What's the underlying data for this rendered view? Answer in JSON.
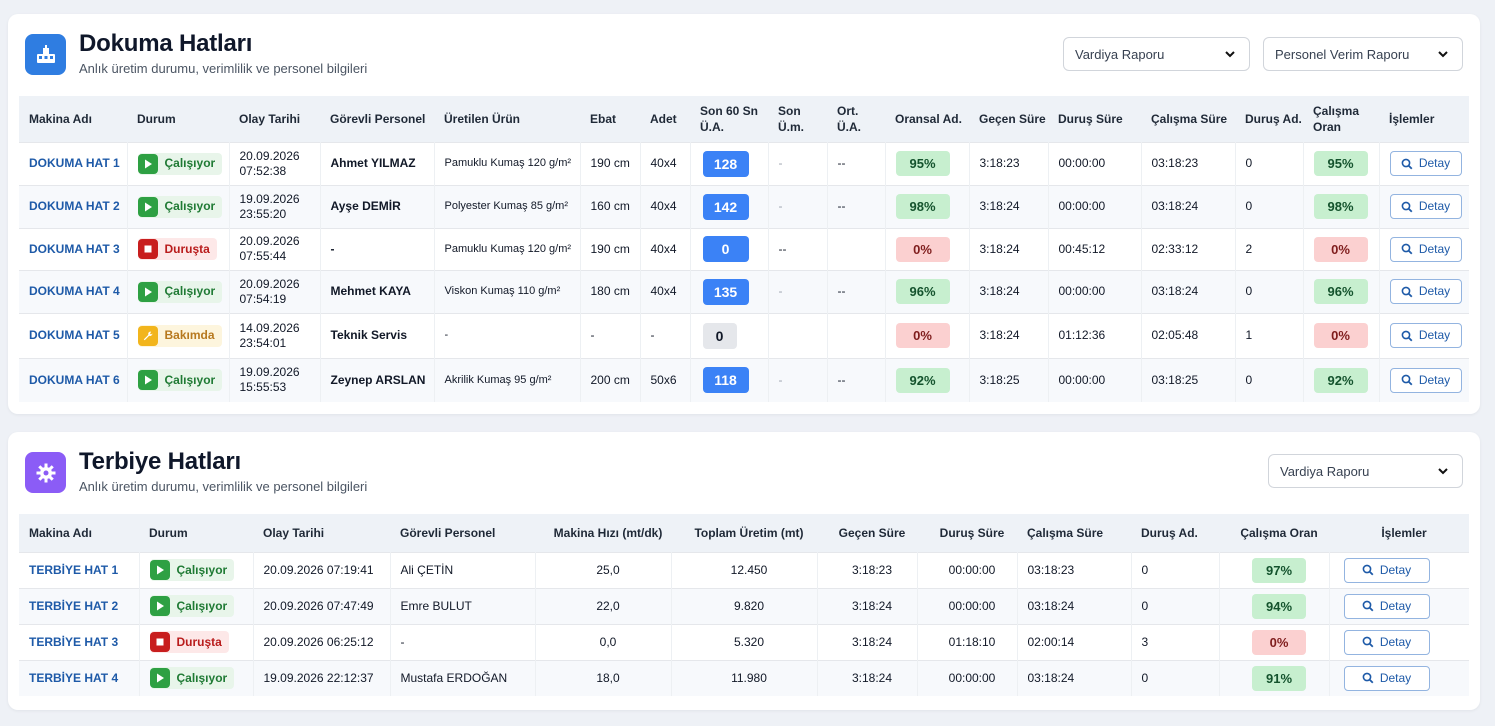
{
  "dokuma": {
    "title": "Dokuma Hatları",
    "subtitle": "Anlık üretim durumu, verimlilik ve personel bilgileri",
    "report1": "Vardiya Raporu",
    "report2": "Personel Verim Raporu",
    "headers": [
      "Makina Adı",
      "Durum",
      "Olay Tarihi",
      "Görevli Personel",
      "Üretilen Ürün",
      "Ebat",
      "Adet",
      "Son 60 Sn Ü.A.",
      "Son Ü.m.",
      "Ort. Ü.A.",
      "Oransal Ad.",
      "Geçen Süre",
      "Duruş Süre",
      "Çalışma Süre",
      "Duruş Ad.",
      "Çalışma Oran",
      "İşlemler"
    ],
    "rows": [
      {
        "name": "DOKUMA HAT 1",
        "status": "Çalışıyor",
        "state": "run",
        "date": "20.09.2026",
        "time": "07:52:38",
        "person": "Ahmet YILMAZ",
        "product": "Pamuklu Kumaş 120 g/m²",
        "ebat": "190 cm",
        "adet": "40x4",
        "son60": "128",
        "son60_style": "blue",
        "sonum": "-",
        "ort": "--",
        "oransal": "95%",
        "oransal_style": "green",
        "gecen": "3:18:23",
        "durus": "00:00:00",
        "calisma": "03:18:23",
        "durus_ad": "0",
        "oran": "95%",
        "oran_style": "green",
        "action": "Detay"
      },
      {
        "name": "DOKUMA HAT 2",
        "status": "Çalışıyor",
        "state": "run",
        "date": "19.09.2026",
        "time": "23:55:20",
        "person": "Ayşe DEMİR",
        "product": "Polyester Kumaş 85 g/m²",
        "ebat": "160 cm",
        "adet": "40x4",
        "son60": "142",
        "son60_style": "blue",
        "sonum": "-",
        "ort": "--",
        "oransal": "98%",
        "oransal_style": "green",
        "gecen": "3:18:24",
        "durus": "00:00:00",
        "calisma": "03:18:24",
        "durus_ad": "0",
        "oran": "98%",
        "oran_style": "green",
        "action": "Detay"
      },
      {
        "name": "DOKUMA HAT 3",
        "status": "Duruşta",
        "state": "stop",
        "date": "20.09.2026",
        "time": "07:55:44",
        "person": "-",
        "product": "Pamuklu Kumaş 120 g/m²",
        "ebat": "190 cm",
        "adet": "40x4",
        "son60": "0",
        "son60_style": "blue",
        "sonum": "--",
        "ort": "",
        "oransal": "0%",
        "oransal_style": "red",
        "gecen": "3:18:24",
        "durus": "00:45:12",
        "calisma": "02:33:12",
        "durus_ad": "2",
        "oran": "0%",
        "oran_style": "red",
        "action": "Detay"
      },
      {
        "name": "DOKUMA HAT 4",
        "status": "Çalışıyor",
        "state": "run",
        "date": "20.09.2026",
        "time": "07:54:19",
        "person": "Mehmet KAYA",
        "product": "Viskon Kumaş 110 g/m²",
        "ebat": "180 cm",
        "adet": "40x4",
        "son60": "135",
        "son60_style": "blue",
        "sonum": "-",
        "ort": "--",
        "oransal": "96%",
        "oransal_style": "green",
        "gecen": "3:18:24",
        "durus": "00:00:00",
        "calisma": "03:18:24",
        "durus_ad": "0",
        "oran": "96%",
        "oran_style": "green",
        "action": "Detay"
      },
      {
        "name": "DOKUMA HAT 5",
        "status": "Bakımda",
        "state": "maint",
        "date": "14.09.2026",
        "time": "23:54:01",
        "person": "Teknik Servis",
        "product": "-",
        "ebat": "-",
        "adet": "-",
        "son60": "0",
        "son60_style": "gray",
        "sonum": "",
        "ort": "",
        "oransal": "0%",
        "oransal_style": "red",
        "gecen": "3:18:24",
        "durus": "01:12:36",
        "calisma": "02:05:48",
        "durus_ad": "1",
        "oran": "0%",
        "oran_style": "red",
        "action": "Detay"
      },
      {
        "name": "DOKUMA HAT 6",
        "status": "Çalışıyor",
        "state": "run",
        "date": "19.09.2026",
        "time": "15:55:53",
        "person": "Zeynep ARSLAN",
        "product": "Akrilik Kumaş 95 g/m²",
        "ebat": "200 cm",
        "adet": "50x6",
        "son60": "118",
        "son60_style": "blue",
        "sonum": "-",
        "ort": "--",
        "oransal": "92%",
        "oransal_style": "green",
        "gecen": "3:18:25",
        "durus": "00:00:00",
        "calisma": "03:18:25",
        "durus_ad": "0",
        "oran": "92%",
        "oran_style": "green",
        "action": "Detay"
      }
    ]
  },
  "terbiye": {
    "title": "Terbiye Hatları",
    "subtitle": "Anlık üretim durumu, verimlilik ve personel bilgileri",
    "report1": "Vardiya Raporu",
    "headers": [
      "Makina Adı",
      "Durum",
      "Olay Tarihi",
      "Görevli Personel",
      "Makina Hızı (mt/dk)",
      "Toplam Üretim (mt)",
      "Geçen Süre",
      "Duruş Süre",
      "Çalışma Süre",
      "Duruş Ad.",
      "Çalışma Oran",
      "İşlemler"
    ],
    "rows": [
      {
        "name": "TERBİYE HAT 1",
        "status": "Çalışıyor",
        "state": "run",
        "date": "20.09.2026 07:19:41",
        "person": "Ali ÇETİN",
        "speed": "25,0",
        "total": "12.450",
        "gecen": "3:18:23",
        "durus": "00:00:00",
        "calisma": "03:18:23",
        "durus_ad": "0",
        "oran": "97%",
        "oran_style": "green",
        "action": "Detay"
      },
      {
        "name": "TERBİYE HAT 2",
        "status": "Çalışıyor",
        "state": "run",
        "date": "20.09.2026 07:47:49",
        "person": "Emre BULUT",
        "speed": "22,0",
        "total": "9.820",
        "gecen": "3:18:24",
        "durus": "00:00:00",
        "calisma": "03:18:24",
        "durus_ad": "0",
        "oran": "94%",
        "oran_style": "green",
        "action": "Detay"
      },
      {
        "name": "TERBİYE HAT 3",
        "status": "Duruşta",
        "state": "stop",
        "date": "20.09.2026 06:25:12",
        "person": "-",
        "speed": "0,0",
        "total": "5.320",
        "gecen": "3:18:24",
        "durus": "01:18:10",
        "calisma": "02:00:14",
        "durus_ad": "3",
        "oran": "0%",
        "oran_style": "red",
        "action": "Detay"
      },
      {
        "name": "TERBİYE HAT 4",
        "status": "Çalışıyor",
        "state": "run",
        "date": "19.09.2026 22:12:37",
        "person": "Mustafa ERDOĞAN",
        "speed": "18,0",
        "total": "11.980",
        "gecen": "3:18:24",
        "durus": "00:00:00",
        "calisma": "03:18:24",
        "durus_ad": "0",
        "oran": "91%",
        "oran_style": "green",
        "action": "Detay"
      }
    ]
  }
}
